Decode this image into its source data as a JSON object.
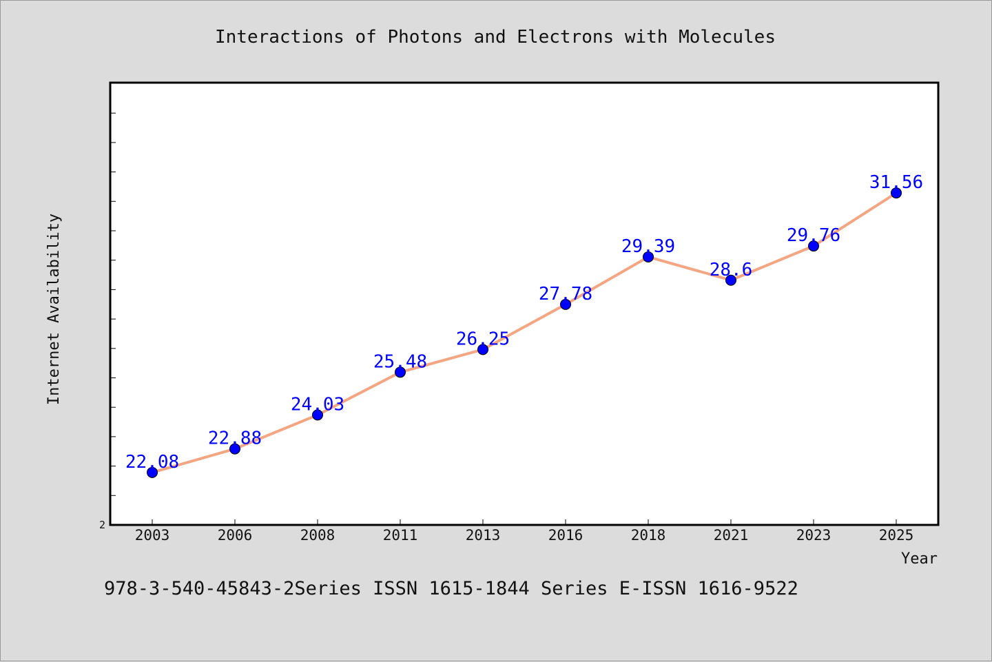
{
  "footer": "978-3-540-45843-2Series ISSN 1615-1844 Series E-ISSN 1616-9522",
  "chart_data": {
    "type": "line",
    "title": "Interactions of Photons and Electrons with Molecules",
    "xlabel": "Year",
    "ylabel": "Internet Availability",
    "categories": [
      "2003",
      "2006",
      "2008",
      "2011",
      "2013",
      "2016",
      "2018",
      "2021",
      "2023",
      "2025"
    ],
    "series": [
      {
        "values": [
          22.08,
          22.88,
          24.03,
          25.48,
          26.25,
          27.78,
          29.39,
          28.6,
          29.76,
          31.56
        ],
        "labels": [
          "22.08",
          "22.88",
          "24.03",
          "25.48",
          "26.25",
          "27.78",
          "29.39",
          "28.6",
          "29.76",
          "31.56"
        ],
        "color": "#f4a582",
        "marker_color": "#0000ff"
      }
    ],
    "y_tick_labels": [
      "2"
    ],
    "ylim": [
      20.3,
      35.3
    ],
    "grid": false,
    "legend": "none",
    "colors": {
      "background": "#dcdcdc",
      "plot_background": "#ffffff",
      "line": "#f4a582",
      "marker": "#0000ff",
      "data_label": "#0000ff"
    }
  }
}
